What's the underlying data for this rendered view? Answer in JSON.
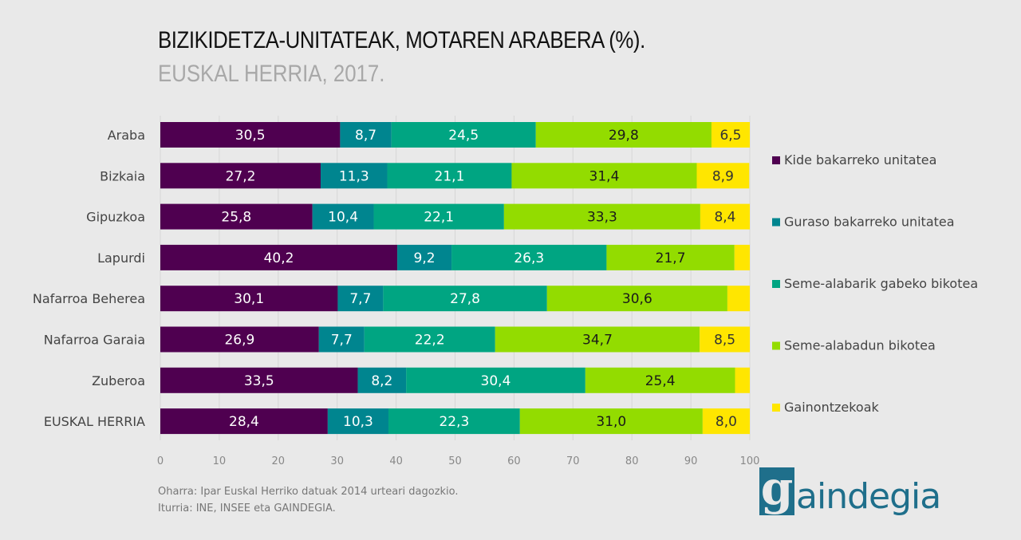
{
  "header": {
    "title": "BIZIKIDETZA-UNITATEAK, MOTAREN ARABERA (%).",
    "subtitle": "EUSKAL HERRIA, 2017."
  },
  "notes": {
    "note": "Oharra: Ipar Euskal Herriko datuak 2014 urteari  dagozkio.",
    "source": "Iturria: INE, INSEE eta GAINDEGIA."
  },
  "logo": {
    "initial": "g",
    "text": "aindegia",
    "color": "#1f6f8b"
  },
  "chart_data": {
    "type": "bar",
    "orientation": "horizontal",
    "stacked": true,
    "title": "BIZIKIDETZA-UNITATEAK, MOTAREN ARABERA (%).",
    "subtitle": "EUSKAL HERRIA, 2017.",
    "xlabel": "",
    "ylabel": "",
    "xlim": [
      0,
      100
    ],
    "xticks": [
      0,
      10,
      20,
      30,
      40,
      50,
      60,
      70,
      80,
      90,
      100
    ],
    "grid": true,
    "legend_position": "right",
    "categories": [
      "Araba",
      "Bizkaia",
      "Gipuzkoa",
      "Lapurdi",
      "Nafarroa Beherea",
      "Nafarroa Garaia",
      "Zuberoa",
      "EUSKAL HERRIA"
    ],
    "series": [
      {
        "name": "Kide bakarreko unitatea",
        "color": "#4f0050",
        "label_color": "#ffffff",
        "values": [
          30.5,
          27.2,
          25.8,
          40.2,
          30.1,
          26.9,
          33.5,
          28.4
        ],
        "labels": [
          "30,5",
          "27,2",
          "25,8",
          "40,2",
          "30,1",
          "26,9",
          "33,5",
          "28,4"
        ]
      },
      {
        "name": "Guraso bakarreko unitatea",
        "color": "#00858f",
        "label_color": "#ffffff",
        "values": [
          8.7,
          11.3,
          10.4,
          9.2,
          7.7,
          7.7,
          8.2,
          10.3
        ],
        "labels": [
          "8,7",
          "11,3",
          "10,4",
          "9,2",
          "7,7",
          "7,7",
          "8,2",
          "10,3"
        ]
      },
      {
        "name": "Seme-alabarik gabeko bikotea",
        "color": "#00a582",
        "label_color": "#ffffff",
        "values": [
          24.5,
          21.1,
          22.1,
          26.3,
          27.8,
          22.2,
          30.4,
          22.3
        ],
        "labels": [
          "24,5",
          "21,1",
          "22,1",
          "26,3",
          "27,8",
          "22,2",
          "30,4",
          "22,3"
        ]
      },
      {
        "name": "Seme-alabadun bikotea",
        "color": "#93dc00",
        "label_color": "#1a1a1a",
        "values": [
          29.8,
          31.4,
          33.3,
          21.7,
          30.6,
          34.7,
          25.4,
          31.0
        ],
        "labels": [
          "29,8",
          "31,4",
          "33,3",
          "21,7",
          "30,6",
          "34,7",
          "25,4",
          "31,0"
        ]
      },
      {
        "name": "Gainontzekoak",
        "color": "#ffe600",
        "label_color": "#333333",
        "values": [
          6.5,
          8.9,
          8.4,
          2.6,
          3.8,
          8.5,
          2.5,
          8.0
        ],
        "labels": [
          "6,5",
          "8,9",
          "8,4",
          "",
          "",
          "8,5",
          "",
          "8,0"
        ]
      }
    ]
  }
}
